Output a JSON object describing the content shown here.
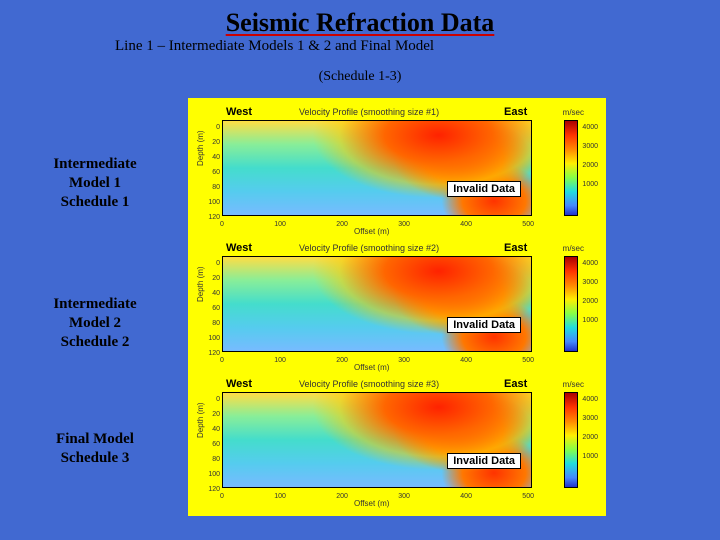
{
  "title": "Seismic Refraction Data",
  "subtitle": "Line 1 – Intermediate Models 1 & 2 and Final Model",
  "schedule_note": "(Schedule 1-3)",
  "side_labels": [
    {
      "l1": "Intermediate",
      "l2": "Model 1",
      "l3": "Schedule 1"
    },
    {
      "l1": "Intermediate",
      "l2": "Model 2",
      "l3": "Schedule 2"
    },
    {
      "l1": "Final Model",
      "l2": "Schedule 3",
      "l3": ""
    }
  ],
  "panels": [
    {
      "west": "West",
      "east": "East",
      "profile_title": "Velocity Profile (smoothing size #1)",
      "ylabel": "Depth (m)",
      "xlabel": "Offset (m)",
      "invalid": "Invalid Data",
      "yticks": [
        "0",
        "20",
        "40",
        "60",
        "80",
        "100",
        "120"
      ],
      "xticks": [
        "0",
        "100",
        "200",
        "300",
        "400",
        "500"
      ],
      "cb_unit": "m/sec",
      "cb_ticks": [
        "4000",
        "3000",
        "2000",
        "1000"
      ],
      "colors": {
        "hot": "#ff2200",
        "warm": "#ff8800",
        "mid": "#ffee00",
        "cool": "#44ddcc",
        "cold": "#4488ff",
        "bg_yellow": "#ffff00"
      }
    },
    {
      "west": "West",
      "east": "East",
      "profile_title": "Velocity Profile (smoothing size #2)",
      "ylabel": "Depth (m)",
      "xlabel": "Offset (m)",
      "invalid": "Invalid Data",
      "yticks": [
        "0",
        "20",
        "40",
        "60",
        "80",
        "100",
        "120"
      ],
      "xticks": [
        "0",
        "100",
        "200",
        "300",
        "400",
        "500"
      ],
      "cb_unit": "m/sec",
      "cb_ticks": [
        "4000",
        "3000",
        "2000",
        "1000"
      ]
    },
    {
      "west": "West",
      "east": "East",
      "profile_title": "Velocity Profile (smoothing size #3)",
      "ylabel": "Depth (m)",
      "xlabel": "Offset (m)",
      "invalid": "Invalid Data",
      "yticks": [
        "0",
        "20",
        "40",
        "60",
        "80",
        "100",
        "120"
      ],
      "xticks": [
        "0",
        "100",
        "200",
        "300",
        "400",
        "500"
      ],
      "cb_unit": "m/sec",
      "cb_ticks": [
        "4000",
        "3000",
        "2000",
        "1000"
      ]
    }
  ],
  "page_bg": "#4169d1"
}
